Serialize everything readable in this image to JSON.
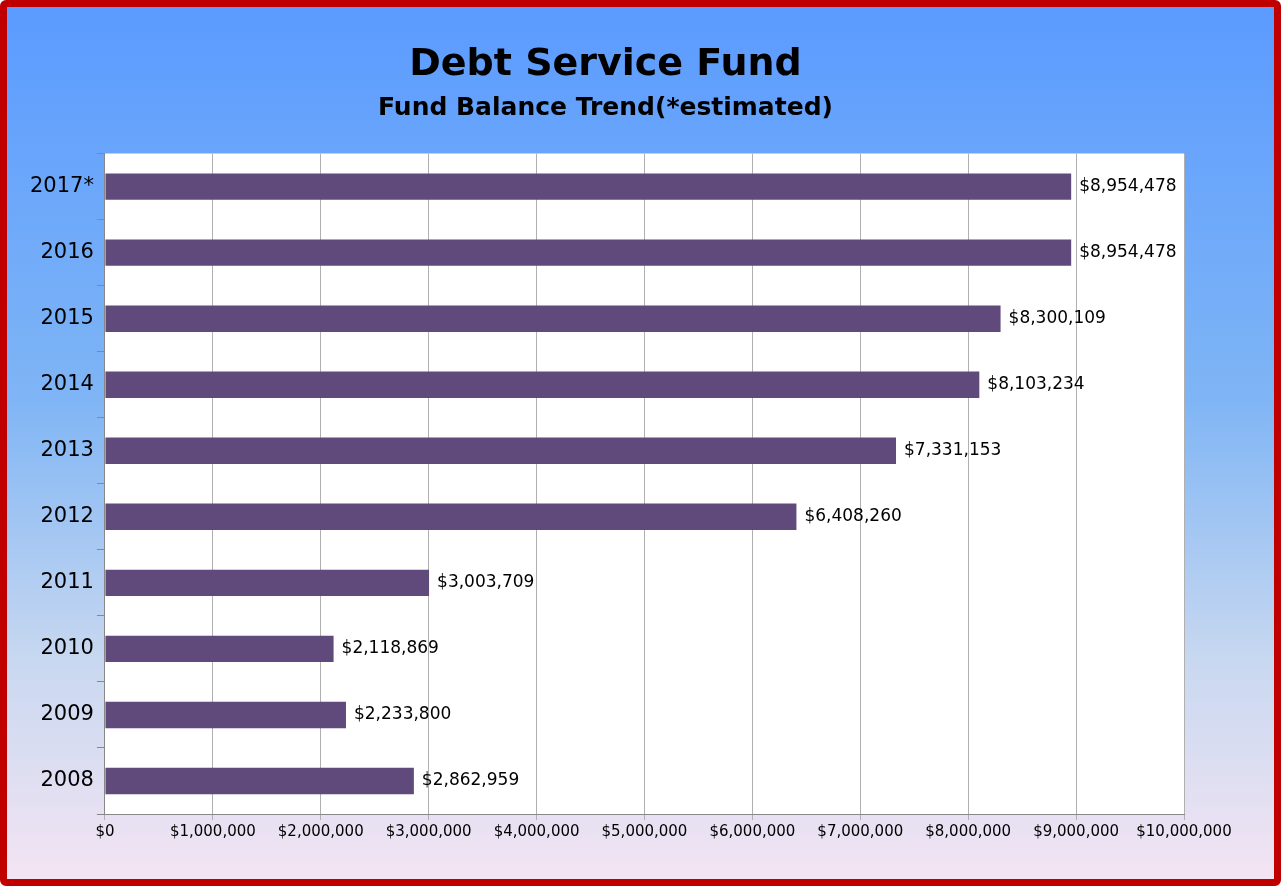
{
  "chart_data": {
    "type": "bar",
    "orientation": "horizontal",
    "title": "Debt Service Fund",
    "subtitle": "Fund Balance Trend(*estimated)",
    "categories": [
      "2017*",
      "2016",
      "2015",
      "2014",
      "2013",
      "2012",
      "2011",
      "2010",
      "2009",
      "2008"
    ],
    "values": [
      8954478,
      8954478,
      8300109,
      8103234,
      7331153,
      6408260,
      3003709,
      2118869,
      2233800,
      2862959
    ],
    "value_labels": [
      "$8,954,478",
      "$8,954,478",
      "$8,300,109",
      "$8,103,234",
      "$7,331,153",
      "$6,408,260",
      "$3,003,709",
      "$2,118,869",
      "$2,233,800",
      "$2,862,959"
    ],
    "color": "#604a7b",
    "xlim": [
      0,
      10000000
    ],
    "xticks": [
      {
        "value": 0,
        "label": "$0"
      },
      {
        "value": 1000000,
        "label": "$1,000,000"
      },
      {
        "value": 2000000,
        "label": "$2,000,000"
      },
      {
        "value": 3000000,
        "label": "$3,000,000"
      },
      {
        "value": 4000000,
        "label": "$4,000,000"
      },
      {
        "value": 5000000,
        "label": "$5,000,000"
      },
      {
        "value": 6000000,
        "label": "$6,000,000"
      },
      {
        "value": 7000000,
        "label": "$7,000,000"
      },
      {
        "value": 8000000,
        "label": "$8,000,000"
      },
      {
        "value": 9000000,
        "label": "$9,000,000"
      },
      {
        "value": 10000000,
        "label": "$10,000,000"
      }
    ],
    "grid": "x",
    "legend": false
  }
}
